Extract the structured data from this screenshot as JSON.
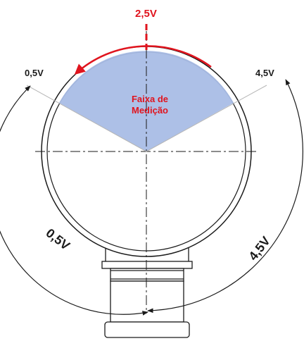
{
  "labels": {
    "center_voltage": "2,5V",
    "left_voltage": "0,5V",
    "right_voltage": "4,5V",
    "range_title_line1": "Faixa de",
    "range_title_line2": "Medição",
    "left_arc_voltage": "0,5V",
    "right_arc_voltage": "4,5V"
  },
  "colors": {
    "accent_red": "#e0141e",
    "range_fill": "#a9bde6",
    "line": "#1a1a1a"
  }
}
